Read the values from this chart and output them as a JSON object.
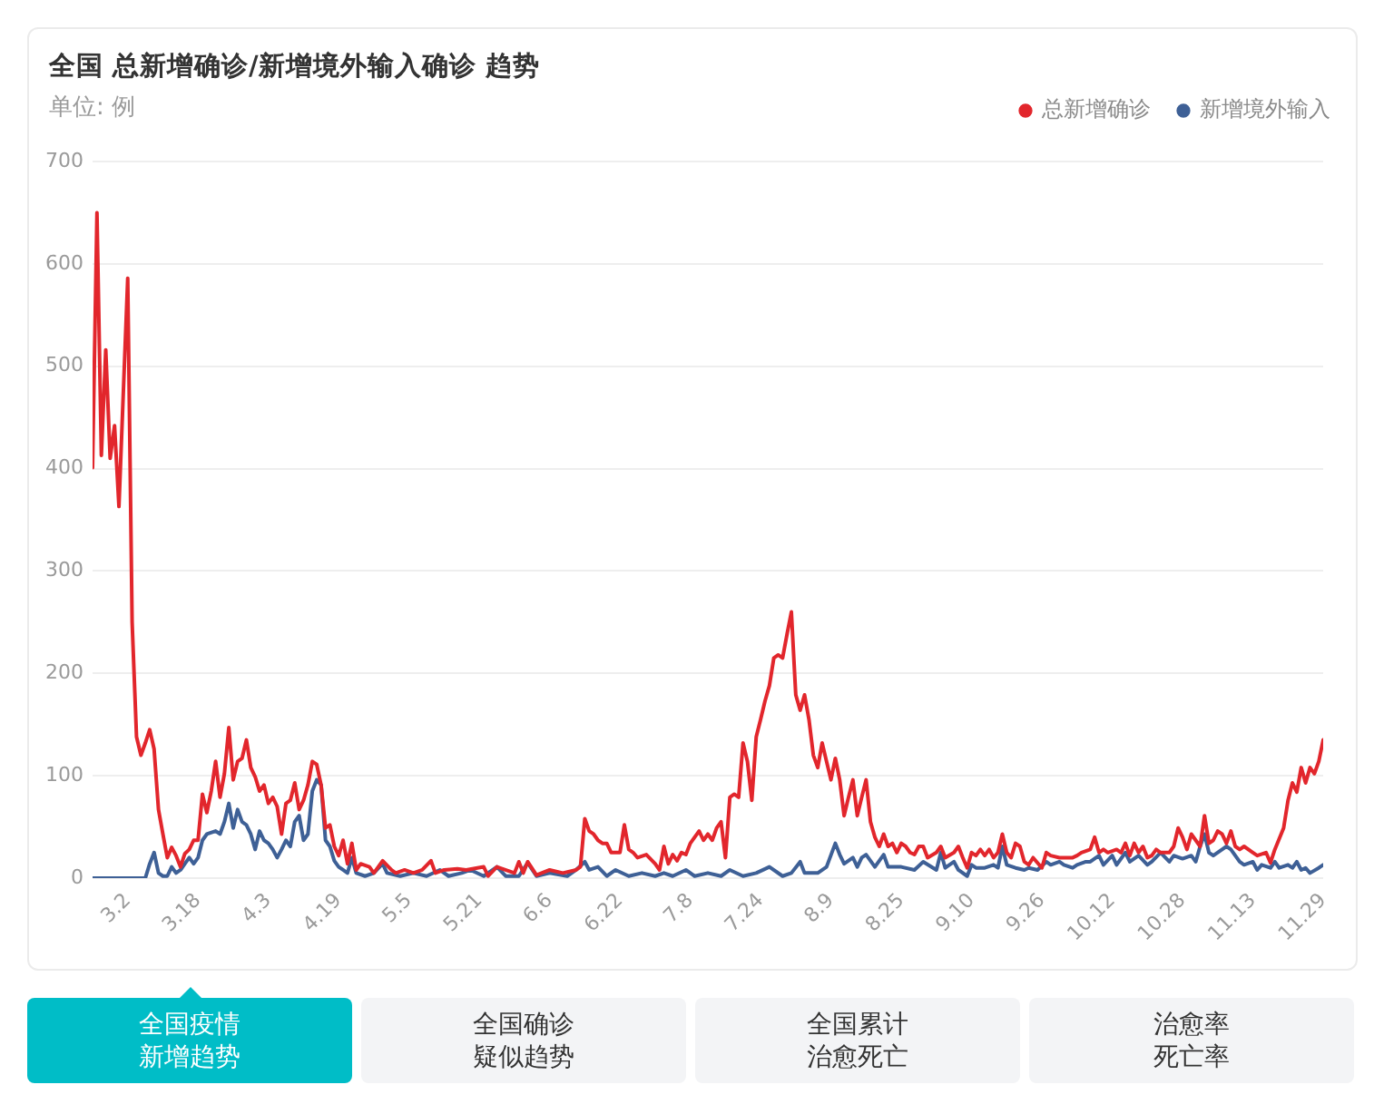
{
  "chart_data": {
    "type": "line",
    "title": "全国 总新增确诊/新增境外输入确诊 趋势",
    "subtitle": "单位: 例",
    "series": [
      {
        "name": "总新增确诊",
        "color": "#e2262c",
        "x": [
          "--02-23",
          "--02-24",
          "--02-25",
          "--02-26",
          "--02-27",
          "--02-28",
          "--02-29",
          "--03-02",
          "--03-03",
          "--03-04",
          "--03-05",
          "--03-06",
          "--03-07",
          "--03-08",
          "--03-09",
          "--03-10",
          "--03-11",
          "--03-12",
          "--03-13",
          "--03-14",
          "--03-15",
          "--03-16",
          "--03-17",
          "--03-18",
          "--03-19",
          "--03-20",
          "--03-21",
          "--03-22",
          "--03-23",
          "--03-24",
          "--03-25",
          "--03-26",
          "--03-27",
          "--03-28",
          "--03-29",
          "--03-30",
          "--03-31",
          "--04-01",
          "--04-02",
          "--04-03",
          "--04-04",
          "--04-05",
          "--04-06",
          "--04-07",
          "--04-08",
          "--04-09",
          "--04-10",
          "--04-11",
          "--04-12",
          "--04-13",
          "--04-14",
          "--04-15",
          "--04-16",
          "--04-17",
          "--04-18",
          "--04-19",
          "--04-20",
          "--04-21",
          "--04-22",
          "--04-23",
          "--04-24",
          "--04-26",
          "--04-27",
          "--04-29",
          "--05-01",
          "--05-02",
          "--05-04",
          "--05-06",
          "--05-08",
          "--05-10",
          "--05-11",
          "--05-13",
          "--05-16",
          "--05-18",
          "--05-22",
          "--05-23",
          "--05-25",
          "--05-29",
          "--05-30",
          "--05-31",
          "--06-01",
          "--06-03",
          "--06-06",
          "--06-09",
          "--06-12",
          "--06-13",
          "--06-14",
          "--06-15",
          "--06-16",
          "--06-17",
          "--06-18",
          "--06-19",
          "--06-20",
          "--06-22",
          "--06-23",
          "--06-24",
          "--06-25",
          "--06-26",
          "--06-28",
          "--06-30",
          "--07-01",
          "--07-02",
          "--07-03",
          "--07-04",
          "--07-05",
          "--07-06",
          "--07-07",
          "--07-08",
          "--07-10",
          "--07-11",
          "--07-12",
          "--07-13",
          "--07-14",
          "--07-15",
          "--07-16",
          "--07-17",
          "--07-18",
          "--07-19",
          "--07-20",
          "--07-21",
          "--07-22",
          "--07-23",
          "--07-24",
          "--07-25",
          "--07-26",
          "--07-27",
          "--07-28",
          "--07-29",
          "--07-30",
          "--07-31",
          "--08-01",
          "--08-02",
          "--08-03",
          "--08-04",
          "--08-05",
          "--08-06",
          "--08-07",
          "--08-08",
          "--08-09",
          "--08-10",
          "--08-11",
          "--08-12",
          "--08-13",
          "--08-14",
          "--08-15",
          "--08-16",
          "--08-17",
          "--08-18",
          "--08-19",
          "--08-20",
          "--08-21",
          "--08-22",
          "--08-23",
          "--08-24",
          "--08-25",
          "--08-26",
          "--08-27",
          "--08-28",
          "--08-29",
          "--08-30",
          "--08-31",
          "--09-02",
          "--09-03",
          "--09-04",
          "--09-06",
          "--09-07",
          "--09-08",
          "--09-09",
          "--09-10",
          "--09-11",
          "--09-12",
          "--09-13",
          "--09-14",
          "--09-15",
          "--09-16",
          "--09-17",
          "--09-18",
          "--09-19",
          "--09-20",
          "--09-21",
          "--09-22",
          "--09-23",
          "--09-24",
          "--09-26",
          "--09-27",
          "--09-28",
          "--09-30",
          "--10-01",
          "--10-03",
          "--10-04",
          "--10-05",
          "--10-07",
          "--10-08",
          "--10-09",
          "--10-10",
          "--10-11",
          "--10-13",
          "--10-14",
          "--10-15",
          "--10-16",
          "--10-17",
          "--10-18",
          "--10-19",
          "--10-20",
          "--10-21",
          "--10-22",
          "--10-23",
          "--10-25",
          "--10-26",
          "--10-27",
          "--10-28",
          "--10-29",
          "--10-30",
          "--10-31",
          "--11-01",
          "--11-02",
          "--11-03",
          "--11-04",
          "--11-05",
          "--11-06",
          "--11-07",
          "--11-08",
          "--11-09",
          "--11-10",
          "--11-11",
          "--11-13",
          "--11-14",
          "--11-16",
          "--11-17",
          "--11-18",
          "--11-20",
          "--11-21",
          "--11-22",
          "--11-23",
          "--11-24",
          "--11-25",
          "--11-26",
          "--11-27",
          "--11-28",
          "--11-29"
        ],
        "values": [
          401,
          650,
          413,
          516,
          410,
          442,
          363,
          586,
          250,
          138,
          120,
          132,
          145,
          126,
          67,
          43,
          20,
          30,
          22,
          11,
          24,
          28,
          37,
          37,
          82,
          64,
          85,
          114,
          79,
          102,
          147,
          96,
          114,
          117,
          135,
          108,
          99,
          85,
          91,
          73,
          79,
          70,
          43,
          73,
          76,
          93,
          67,
          76,
          91,
          114,
          111,
          91,
          49,
          52,
          31,
          22,
          37,
          14,
          34,
          8,
          14,
          11,
          5,
          17,
          8,
          5,
          8,
          5,
          8,
          17,
          5,
          8,
          9,
          8,
          11,
          2,
          11,
          5,
          16,
          5,
          16,
          3,
          8,
          5,
          8,
          11,
          58,
          46,
          43,
          37,
          34,
          34,
          25,
          25,
          52,
          28,
          25,
          20,
          23,
          14,
          8,
          31,
          14,
          23,
          17,
          25,
          23,
          34,
          46,
          37,
          43,
          37,
          49,
          55,
          20,
          79,
          82,
          79,
          132,
          114,
          76,
          138,
          155,
          173,
          188,
          215,
          218,
          215,
          238,
          260,
          179,
          164,
          179,
          155,
          120,
          108,
          132,
          114,
          96,
          117,
          96,
          61,
          79,
          96,
          61,
          79,
          96,
          55,
          40,
          31,
          43,
          31,
          34,
          25,
          34,
          31,
          25,
          23,
          31,
          31,
          20,
          25,
          31,
          20,
          25,
          31,
          20,
          10,
          25,
          22,
          28,
          22,
          28,
          20,
          25,
          43,
          25,
          20,
          34,
          31,
          16,
          13,
          20,
          10,
          25,
          22,
          20,
          20,
          20,
          22,
          25,
          28,
          40,
          25,
          28,
          25,
          28,
          25,
          34,
          22,
          34,
          25,
          31,
          20,
          22,
          28,
          25,
          25,
          31,
          49,
          40,
          28,
          43,
          37,
          31,
          61,
          34,
          37,
          46,
          43,
          34,
          46,
          31,
          28,
          31,
          25,
          22,
          25,
          15,
          28,
          49,
          76,
          93,
          84,
          108,
          93,
          108,
          102,
          114,
          135
        ]
      },
      {
        "name": "新增境外输入",
        "color": "#3e6096",
        "x": [
          "--02-23",
          "--03-06",
          "--03-07",
          "--03-08",
          "--03-09",
          "--03-10",
          "--03-11",
          "--03-12",
          "--03-13",
          "--03-14",
          "--03-15",
          "--03-16",
          "--03-17",
          "--03-18",
          "--03-19",
          "--03-20",
          "--03-22",
          "--03-23",
          "--03-24",
          "--03-25",
          "--03-26",
          "--03-27",
          "--03-28",
          "--03-29",
          "--03-30",
          "--03-31",
          "--04-01",
          "--04-02",
          "--04-03",
          "--04-04",
          "--04-05",
          "--04-06",
          "--04-07",
          "--04-08",
          "--04-09",
          "--04-10",
          "--04-11",
          "--04-12",
          "--04-13",
          "--04-14",
          "--04-15",
          "--04-16",
          "--04-17",
          "--04-18",
          "--04-19",
          "--04-20",
          "--04-21",
          "--04-22",
          "--04-23",
          "--04-25",
          "--04-27",
          "--04-29",
          "--04-30",
          "--05-03",
          "--05-06",
          "--05-09",
          "--05-12",
          "--05-14",
          "--05-17",
          "--05-19",
          "--05-22",
          "--05-25",
          "--05-27",
          "--05-30",
          "--06-01",
          "--06-03",
          "--06-06",
          "--06-10",
          "--06-12",
          "--06-14",
          "--06-15",
          "--06-17",
          "--06-19",
          "--06-21",
          "--06-24",
          "--06-27",
          "--06-30",
          "--07-02",
          "--07-04",
          "--07-07",
          "--07-09",
          "--07-12",
          "--07-15",
          "--07-17",
          "--07-20",
          "--07-23",
          "--07-26",
          "--07-29",
          "--07-31",
          "--08-02",
          "--08-03",
          "--08-06",
          "--08-08",
          "--08-10",
          "--08-11",
          "--08-12",
          "--08-14",
          "--08-15",
          "--08-16",
          "--08-17",
          "--08-19",
          "--08-21",
          "--08-22",
          "--08-25",
          "--08-28",
          "--08-30",
          "--09-02",
          "--09-03",
          "--09-04",
          "--09-06",
          "--09-07",
          "--09-09",
          "--09-10",
          "--09-11",
          "--09-13",
          "--09-15",
          "--09-16",
          "--09-17",
          "--09-18",
          "--09-20",
          "--09-22",
          "--09-23",
          "--09-25",
          "--09-27",
          "--09-28",
          "--09-30",
          "--10-01",
          "--10-03",
          "--10-04",
          "--10-06",
          "--10-07",
          "--10-09",
          "--10-10",
          "--10-12",
          "--10-13",
          "--10-15",
          "--10-16",
          "--10-18",
          "--10-20",
          "--10-21",
          "--10-23",
          "--10-25",
          "--10-26",
          "--10-28",
          "--10-30",
          "--10-31",
          "--11-01",
          "--11-02",
          "--11-03",
          "--11-04",
          "--11-06",
          "--11-07",
          "--11-08",
          "--11-10",
          "--11-11",
          "--11-13",
          "--11-14",
          "--11-15",
          "--11-17",
          "--11-18",
          "--11-19",
          "--11-21",
          "--11-22",
          "--11-23",
          "--11-24",
          "--11-25",
          "--11-26",
          "--11-28",
          "--11-29"
        ],
        "values": [
          0,
          0,
          14,
          25,
          5,
          2,
          2,
          11,
          5,
          8,
          14,
          20,
          14,
          20,
          37,
          43,
          46,
          43,
          55,
          73,
          49,
          67,
          55,
          52,
          43,
          28,
          46,
          37,
          34,
          28,
          20,
          28,
          37,
          31,
          55,
          61,
          37,
          43,
          85,
          96,
          91,
          37,
          31,
          17,
          11,
          8,
          5,
          20,
          5,
          2,
          5,
          14,
          5,
          2,
          5,
          2,
          8,
          2,
          5,
          8,
          2,
          11,
          2,
          2,
          15,
          2,
          5,
          2,
          8,
          16,
          8,
          11,
          2,
          8,
          2,
          5,
          2,
          5,
          2,
          8,
          2,
          5,
          2,
          8,
          2,
          5,
          11,
          2,
          5,
          16,
          5,
          5,
          11,
          34,
          23,
          14,
          20,
          11,
          20,
          23,
          11,
          23,
          11,
          11,
          8,
          16,
          8,
          25,
          10,
          16,
          8,
          2,
          13,
          10,
          10,
          13,
          10,
          31,
          13,
          10,
          8,
          10,
          8,
          16,
          13,
          16,
          13,
          10,
          13,
          16,
          16,
          22,
          13,
          22,
          13,
          25,
          16,
          22,
          13,
          16,
          25,
          16,
          22,
          19,
          22,
          16,
          31,
          43,
          25,
          22,
          28,
          31,
          28,
          16,
          13,
          16,
          8,
          13,
          10,
          16,
          10,
          13,
          10,
          16,
          8,
          10,
          5,
          10,
          13
        ]
      }
    ],
    "xlim": [
      "--02-23",
      "--11-29"
    ],
    "xticks": [
      {
        "value": "--03-02",
        "label": "3.2"
      },
      {
        "value": "--03-18",
        "label": "3.18"
      },
      {
        "value": "--04-03",
        "label": "4.3"
      },
      {
        "value": "--04-19",
        "label": "4.19"
      },
      {
        "value": "--05-05",
        "label": "5.5"
      },
      {
        "value": "--05-21",
        "label": "5.21"
      },
      {
        "value": "--06-06",
        "label": "6.6"
      },
      {
        "value": "--06-22",
        "label": "6.22"
      },
      {
        "value": "--07-08",
        "label": "7.8"
      },
      {
        "value": "--07-24",
        "label": "7.24"
      },
      {
        "value": "--08-09",
        "label": "8.9"
      },
      {
        "value": "--08-25",
        "label": "8.25"
      },
      {
        "value": "--09-10",
        "label": "9.10"
      },
      {
        "value": "--09-26",
        "label": "9.26"
      },
      {
        "value": "--10-12",
        "label": "10.12"
      },
      {
        "value": "--10-28",
        "label": "10.28"
      },
      {
        "value": "--11-13",
        "label": "11.13"
      },
      {
        "value": "--11-29",
        "label": "11.29"
      }
    ],
    "ylim": [
      0,
      700
    ],
    "yticks": [
      0,
      100,
      200,
      300,
      400,
      500,
      600,
      700
    ],
    "grid": "y",
    "legend": "top right",
    "annotations": [
      "全国疫情新增趋势",
      "全国确诊疑似趋势",
      "全国累计治愈死亡",
      "治愈率死亡率"
    ]
  }
}
